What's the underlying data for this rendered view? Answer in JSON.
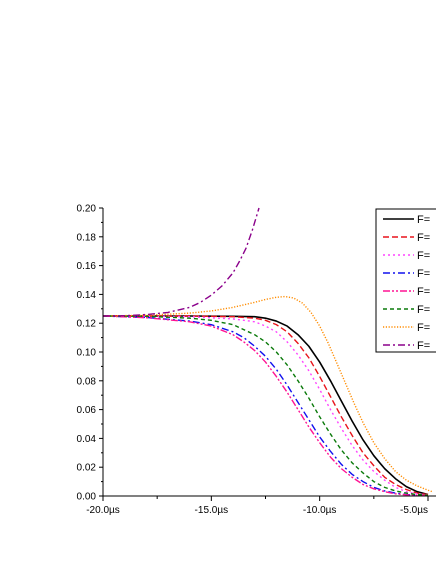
{
  "chart_data": {
    "type": "line",
    "title": "",
    "xlabel": "",
    "ylabel": "",
    "xlim": [
      -20.0,
      -4.8
    ],
    "ylim": [
      0.0,
      0.2
    ],
    "grid": false,
    "legend_position": "top-right",
    "x_ticks": [
      {
        "value": -20.0,
        "label": "-20.0µs"
      },
      {
        "value": -15.0,
        "label": "-15.0µs"
      },
      {
        "value": -10.0,
        "label": "-10.0µs"
      },
      {
        "value": -5.0,
        "label": "-5.0µs"
      }
    ],
    "y_ticks": [
      {
        "value": 0.0,
        "label": "0.00"
      },
      {
        "value": 0.02,
        "label": "0.02"
      },
      {
        "value": 0.04,
        "label": "0.04"
      },
      {
        "value": 0.06,
        "label": "0.06"
      },
      {
        "value": 0.08,
        "label": "0.08"
      },
      {
        "value": 0.1,
        "label": "0.10"
      },
      {
        "value": 0.12,
        "label": "0.12"
      },
      {
        "value": 0.14,
        "label": "0.14"
      },
      {
        "value": 0.16,
        "label": "0.16"
      },
      {
        "value": 0.18,
        "label": "0.18"
      },
      {
        "value": 0.2,
        "label": "0.20"
      }
    ],
    "series": [
      {
        "name": "F=",
        "color": "#000000",
        "dash": "solid",
        "x": [
          -20.0,
          -18.0,
          -16.0,
          -14.0,
          -13.0,
          -12.5,
          -12.0,
          -11.5,
          -11.0,
          -10.5,
          -10.0,
          -9.5,
          -9.0,
          -8.5,
          -8.0,
          -7.5,
          -7.0,
          -6.5,
          -6.0,
          -5.5,
          -5.0
        ],
        "y": [
          0.125,
          0.125,
          0.125,
          0.1248,
          0.1245,
          0.1235,
          0.1215,
          0.118,
          0.112,
          0.104,
          0.093,
          0.08,
          0.066,
          0.052,
          0.039,
          0.028,
          0.019,
          0.012,
          0.0065,
          0.003,
          0.001
        ]
      },
      {
        "name": "F=",
        "color": "#e8141b",
        "dash": "dash",
        "x": [
          -20.0,
          -18.0,
          -16.0,
          -14.0,
          -13.0,
          -12.5,
          -12.0,
          -11.5,
          -11.0,
          -10.5,
          -10.0,
          -9.5,
          -9.0,
          -8.5,
          -8.0,
          -7.5,
          -7.0,
          -6.5,
          -6.0,
          -5.5,
          -5.0
        ],
        "y": [
          0.125,
          0.125,
          0.125,
          0.1245,
          0.1235,
          0.122,
          0.119,
          0.114,
          0.106,
          0.096,
          0.083,
          0.069,
          0.055,
          0.042,
          0.03,
          0.021,
          0.013,
          0.008,
          0.0045,
          0.002,
          0.001
        ]
      },
      {
        "name": "F=",
        "color": "#ff44ff",
        "dash": "dot",
        "x": [
          -20.0,
          -18.0,
          -16.0,
          -14.0,
          -13.0,
          -12.5,
          -12.0,
          -11.5,
          -11.0,
          -10.5,
          -10.0,
          -9.5,
          -9.0,
          -8.5,
          -8.0,
          -7.5,
          -7.0,
          -6.5,
          -6.0,
          -5.5,
          -5.0
        ],
        "y": [
          0.125,
          0.1248,
          0.1245,
          0.123,
          0.121,
          0.118,
          0.114,
          0.107,
          0.098,
          0.087,
          0.074,
          0.06,
          0.047,
          0.035,
          0.025,
          0.017,
          0.011,
          0.006,
          0.003,
          0.0015,
          0.0005
        ]
      },
      {
        "name": "F=",
        "color": "#1010ee",
        "dash": "dashdot",
        "x": [
          -20.0,
          -18.0,
          -16.0,
          -15.0,
          -14.0,
          -13.5,
          -13.0,
          -12.5,
          -12.0,
          -11.5,
          -11.0,
          -10.5,
          -10.0,
          -9.5,
          -9.0,
          -8.5,
          -8.0,
          -7.5,
          -7.0,
          -6.5,
          -6.0,
          -5.5,
          -5.0
        ],
        "y": [
          0.125,
          0.124,
          0.1215,
          0.119,
          0.114,
          0.11,
          0.104,
          0.097,
          0.088,
          0.077,
          0.065,
          0.053,
          0.041,
          0.031,
          0.022,
          0.015,
          0.01,
          0.006,
          0.0035,
          0.002,
          0.001,
          0.0005,
          0.0002
        ]
      },
      {
        "name": "F=",
        "color": "#ff1493",
        "dash": "dashdotdot",
        "x": [
          -20.0,
          -18.0,
          -16.0,
          -15.0,
          -14.0,
          -13.5,
          -13.0,
          -12.5,
          -12.0,
          -11.5,
          -11.0,
          -10.5,
          -10.0,
          -9.5,
          -9.0,
          -8.5,
          -8.0,
          -7.5,
          -7.0,
          -6.5,
          -6.0,
          -5.5,
          -5.0
        ],
        "y": [
          0.125,
          0.1238,
          0.121,
          0.118,
          0.112,
          0.107,
          0.101,
          0.093,
          0.083,
          0.072,
          0.06,
          0.048,
          0.037,
          0.027,
          0.019,
          0.013,
          0.008,
          0.005,
          0.003,
          0.0015,
          0.0008,
          0.0004,
          0.0002
        ]
      },
      {
        "name": "F=",
        "color": "#0a7a0a",
        "dash": "shortdash",
        "x": [
          -20.0,
          -18.0,
          -16.0,
          -15.0,
          -14.0,
          -13.0,
          -12.5,
          -12.0,
          -11.5,
          -11.0,
          -10.5,
          -10.0,
          -9.5,
          -9.0,
          -8.5,
          -8.0,
          -7.5,
          -7.0,
          -6.5,
          -6.0,
          -5.5,
          -5.0
        ],
        "y": [
          0.125,
          0.1248,
          0.1235,
          0.122,
          0.119,
          0.112,
          0.107,
          0.1,
          0.091,
          0.08,
          0.068,
          0.055,
          0.043,
          0.032,
          0.023,
          0.016,
          0.01,
          0.006,
          0.0035,
          0.002,
          0.001,
          0.0005
        ]
      },
      {
        "name": "F=",
        "color": "#ff8c00",
        "dash": "finedot",
        "x": [
          -20.0,
          -18.0,
          -16.0,
          -15.0,
          -14.0,
          -13.0,
          -12.5,
          -12.0,
          -11.6,
          -11.2,
          -10.8,
          -10.4,
          -10.0,
          -9.6,
          -9.2,
          -8.8,
          -8.4,
          -8.0,
          -7.5,
          -7.0,
          -6.5,
          -6.0,
          -5.5,
          -5.0,
          -4.8
        ],
        "y": [
          0.125,
          0.1255,
          0.127,
          0.1285,
          0.131,
          0.1345,
          0.1365,
          0.138,
          0.1385,
          0.1375,
          0.134,
          0.1275,
          0.118,
          0.106,
          0.092,
          0.078,
          0.064,
          0.051,
          0.037,
          0.026,
          0.017,
          0.011,
          0.007,
          0.004,
          0.003
        ]
      },
      {
        "name": "F=",
        "color": "#8b008b",
        "dash": "dashdot",
        "x": [
          -20.0,
          -19.0,
          -18.0,
          -17.0,
          -16.0,
          -15.5,
          -15.0,
          -14.5,
          -14.0,
          -13.7,
          -13.4,
          -13.1,
          -12.8
        ],
        "y": [
          0.125,
          0.1252,
          0.126,
          0.1275,
          0.131,
          0.1345,
          0.1395,
          0.146,
          0.155,
          0.163,
          0.172,
          0.185,
          0.2
        ]
      }
    ]
  }
}
